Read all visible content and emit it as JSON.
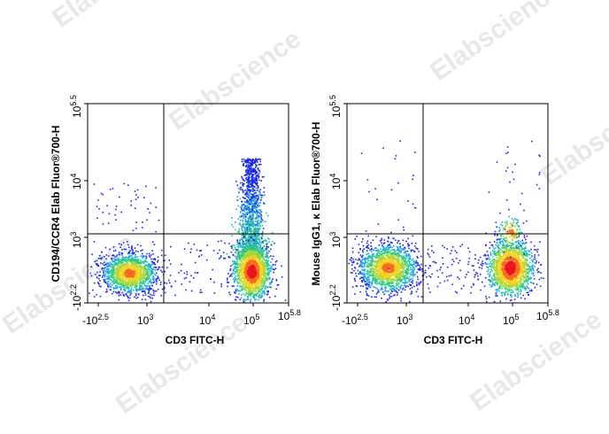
{
  "watermark": {
    "text": "Elabscience",
    "color": "#d6d6d6"
  },
  "chart_data": [
    {
      "type": "scatter",
      "subtype": "flow-cytometry-density-dot-plot",
      "title": "",
      "xlabel": "CD3 FITC-H",
      "ylabel": "CD194/CCR4 Elab Fluor®700-H",
      "x_scale": "biexponential",
      "y_scale": "biexponential",
      "xlim": [
        "-10^2.5",
        "10^5.8"
      ],
      "ylim": [
        "-10^2.2",
        "10^5.5"
      ],
      "x_ticks": [
        {
          "base": "-10",
          "exp": "2.5"
        },
        {
          "base": "10",
          "exp": "3"
        },
        {
          "base": "10",
          "exp": "4"
        },
        {
          "base": "10",
          "exp": "5"
        },
        {
          "base": "10",
          "exp": "5.8"
        }
      ],
      "y_ticks": [
        {
          "base": "-10",
          "exp": "2.2"
        },
        {
          "base": "10",
          "exp": "3"
        },
        {
          "base": "10",
          "exp": "4"
        },
        {
          "base": "10",
          "exp": "5.5"
        }
      ],
      "quadrant_gate": {
        "x": "10^3.3",
        "y": "10^3.1"
      },
      "populations": [
        {
          "label": "CD3- CCR4-",
          "x_center": 400,
          "y_center": 0,
          "density": "medium",
          "color": "#19c48a"
        },
        {
          "label": "CD3+ CCR4-",
          "x_center": 100000,
          "y_center": 0,
          "density": "high",
          "color": "#e8151b"
        },
        {
          "label": "CD3+ CCR4+",
          "x_center": 60000,
          "y_center": 3000,
          "density": "medium",
          "color": "#17a7e0"
        }
      ],
      "grid": false,
      "legend": "none"
    },
    {
      "type": "scatter",
      "subtype": "flow-cytometry-density-dot-plot",
      "title": "",
      "xlabel": "CD3 FITC-H",
      "ylabel": "Mouse IgG1, κ Elab Fluor®700-H",
      "x_scale": "biexponential",
      "y_scale": "biexponential",
      "xlim": [
        "-10^2.5",
        "10^5.8"
      ],
      "ylim": [
        "-10^2.2",
        "10^5.5"
      ],
      "x_ticks": [
        {
          "base": "-10",
          "exp": "2.5"
        },
        {
          "base": "10",
          "exp": "3"
        },
        {
          "base": "10",
          "exp": "4"
        },
        {
          "base": "10",
          "exp": "5"
        },
        {
          "base": "10",
          "exp": "5.8"
        }
      ],
      "y_ticks": [
        {
          "base": "-10",
          "exp": "2.2"
        },
        {
          "base": "10",
          "exp": "3"
        },
        {
          "base": "10",
          "exp": "4"
        },
        {
          "base": "10",
          "exp": "5.5"
        }
      ],
      "quadrant_gate": {
        "x": "10^3.3",
        "y": "10^3.1"
      },
      "populations": [
        {
          "label": "CD3- isotype",
          "x_center": 400,
          "y_center": 0,
          "density": "medium",
          "color": "#19c48a"
        },
        {
          "label": "CD3+ isotype",
          "x_center": 90000,
          "y_center": 0,
          "density": "high",
          "color": "#e8151b"
        }
      ],
      "grid": false,
      "legend": "none"
    }
  ]
}
